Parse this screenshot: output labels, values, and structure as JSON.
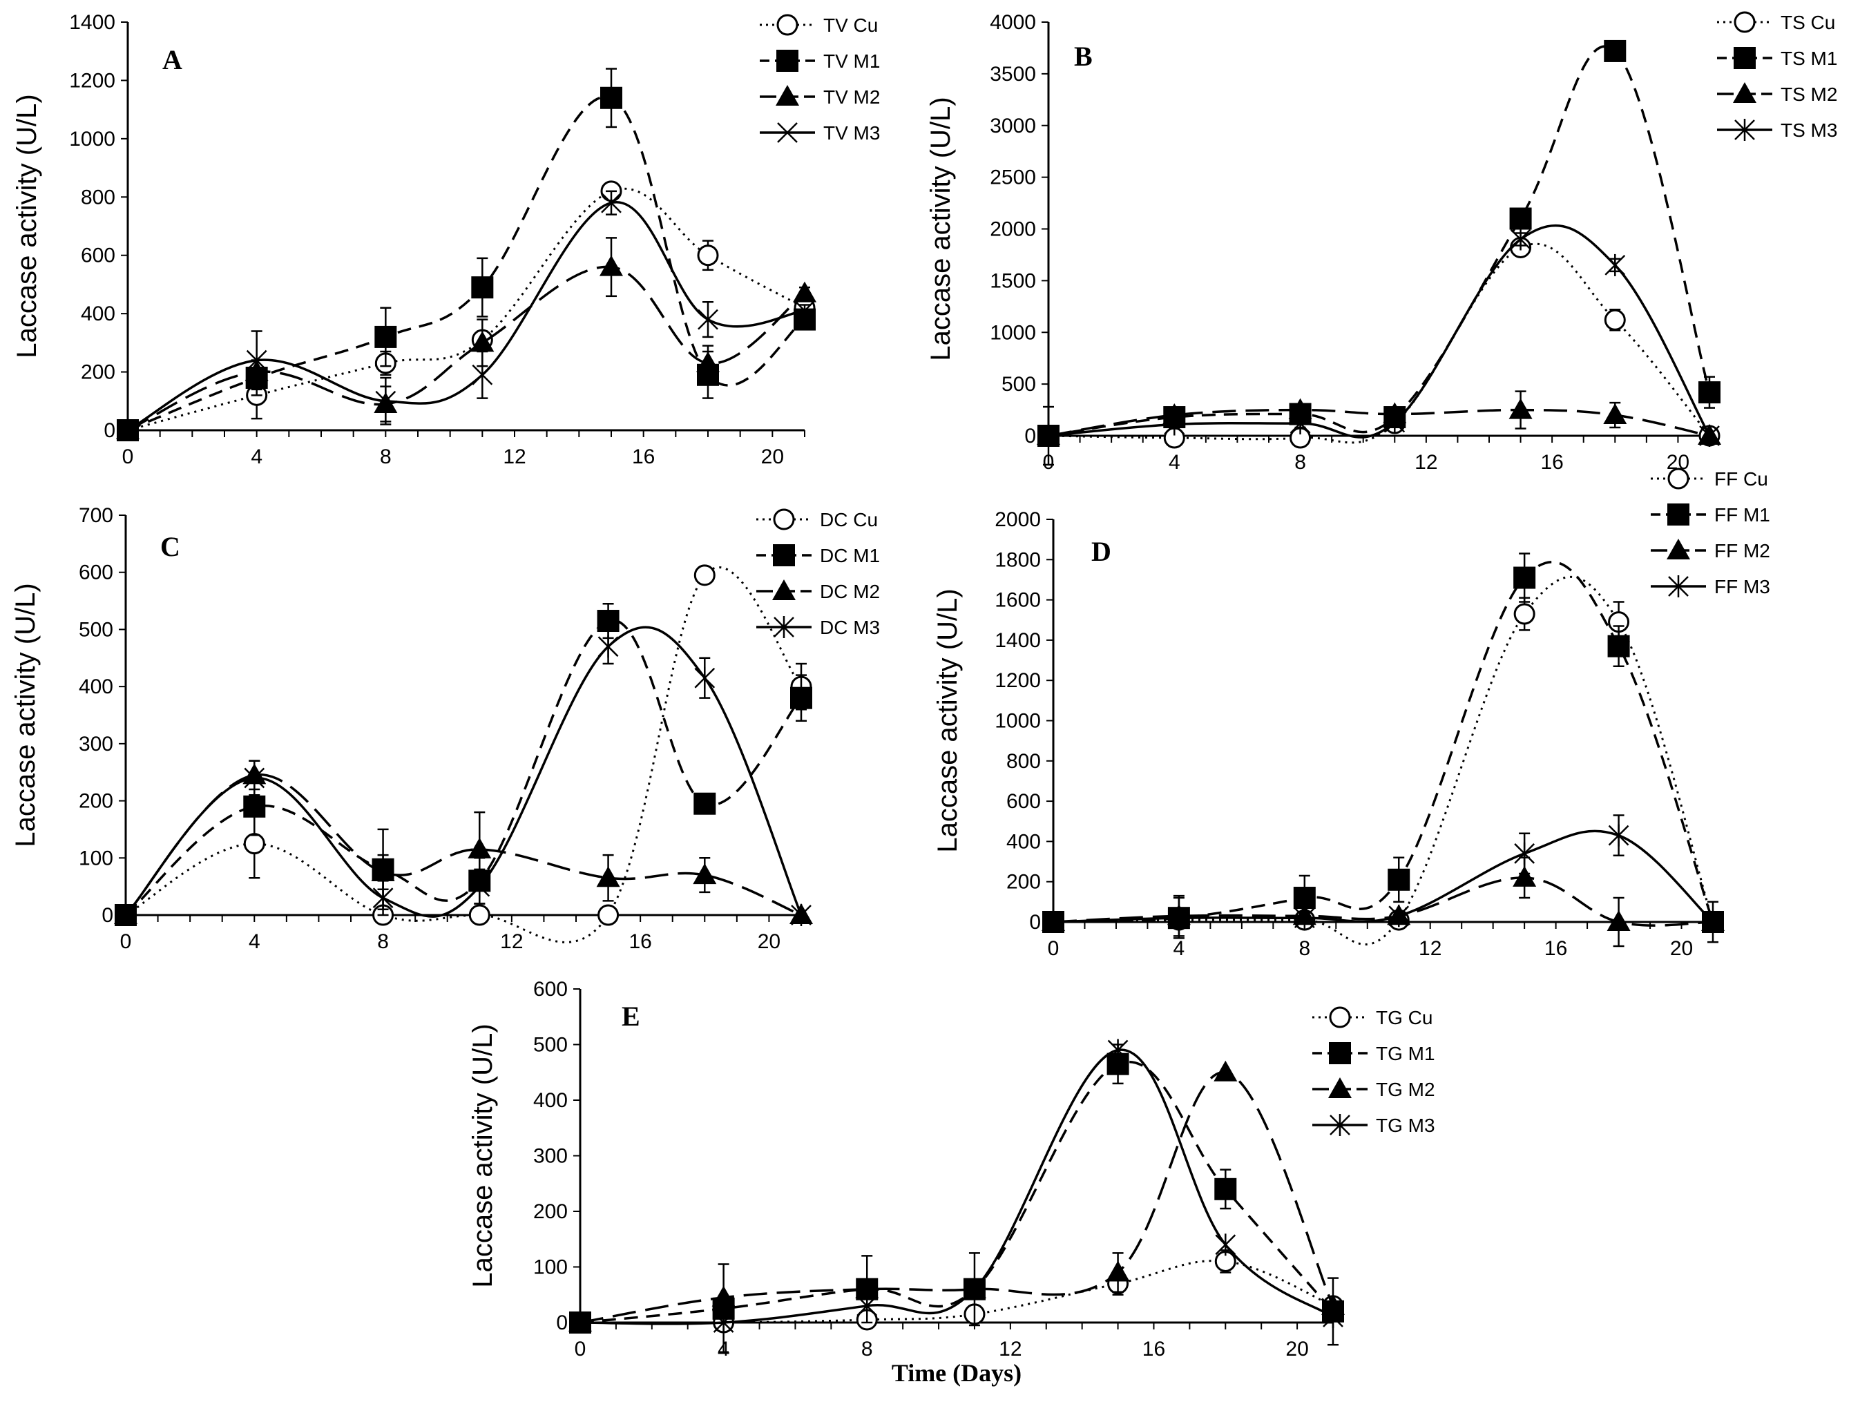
{
  "chart_data": [
    {
      "type": "line",
      "panel": "A",
      "ylabel": "Laccase activity (U/L)",
      "xlabel": "",
      "xlim": [
        0,
        21
      ],
      "x_ticks": [
        0,
        4,
        8,
        12,
        16,
        20
      ],
      "ylim": [
        0,
        1400
      ],
      "y_ticks": [
        0,
        200,
        400,
        600,
        800,
        1000,
        1200,
        1400
      ],
      "x": [
        0,
        4,
        8,
        11,
        15,
        18,
        21
      ],
      "legend_position": "top-right",
      "series": [
        {
          "name": "TV Cu",
          "style": "dotted",
          "marker": "circle",
          "values": [
            0,
            120,
            230,
            310,
            820,
            600,
            420
          ],
          "errors": [
            0,
            80,
            40,
            30,
            20,
            50,
            20
          ]
        },
        {
          "name": "TV M1",
          "style": "dashed",
          "marker": "square",
          "values": [
            0,
            180,
            320,
            490,
            1140,
            190,
            380
          ],
          "errors": [
            0,
            60,
            100,
            100,
            100,
            80,
            20
          ]
        },
        {
          "name": "TV M2",
          "style": "longdash",
          "marker": "triangle",
          "values": [
            0,
            200,
            90,
            300,
            560,
            230,
            470
          ],
          "errors": [
            0,
            40,
            60,
            80,
            100,
            60,
            20
          ]
        },
        {
          "name": "TV M3",
          "style": "solid",
          "marker": "x",
          "values": [
            0,
            240,
            100,
            190,
            780,
            380,
            410
          ],
          "errors": [
            0,
            100,
            80,
            80,
            40,
            60,
            20
          ]
        }
      ]
    },
    {
      "type": "line",
      "panel": "B",
      "ylabel": "Laccase activity (U/L)",
      "xlabel": "",
      "xlim": [
        0,
        21
      ],
      "x_ticks": [
        0,
        4,
        8,
        12,
        16,
        20
      ],
      "ylim": [
        0,
        4000
      ],
      "y_ticks": [
        0,
        500,
        1000,
        1500,
        2000,
        2500,
        3000,
        3500,
        4000
      ],
      "x": [
        0,
        4,
        8,
        11,
        15,
        18,
        21
      ],
      "legend_position": "top-right",
      "series": [
        {
          "name": "TS Cu",
          "style": "dotted",
          "marker": "circle",
          "values": [
            0,
            -20,
            -20,
            120,
            1820,
            1120,
            0
          ],
          "errors": [
            0,
            0,
            0,
            40,
            60,
            100,
            0
          ]
        },
        {
          "name": "TS M1",
          "style": "dashed",
          "marker": "square",
          "values": [
            0,
            180,
            210,
            180,
            2100,
            3720,
            420
          ],
          "errors": [
            0,
            60,
            60,
            60,
            80,
            60,
            150
          ]
        },
        {
          "name": "TS M2",
          "style": "longdash",
          "marker": "triangle",
          "values": [
            0,
            200,
            250,
            210,
            250,
            200,
            0
          ],
          "errors": [
            280,
            40,
            40,
            40,
            180,
            120,
            0
          ]
        },
        {
          "name": "TS M3",
          "style": "solid",
          "marker": "asterisk",
          "values": [
            0,
            110,
            120,
            130,
            1900,
            1650,
            0
          ],
          "errors": [
            0,
            40,
            40,
            40,
            60,
            60,
            0
          ]
        }
      ]
    },
    {
      "type": "line",
      "panel": "C",
      "ylabel": "Laccase activity (U/L)",
      "xlabel": "",
      "xlim": [
        0,
        21
      ],
      "x_ticks": [
        0,
        4,
        8,
        12,
        16,
        20
      ],
      "ylim": [
        0,
        700
      ],
      "y_ticks": [
        0,
        100,
        200,
        300,
        400,
        500,
        600,
        700
      ],
      "x": [
        0,
        4,
        8,
        11,
        15,
        18,
        21
      ],
      "legend_position": "top-right",
      "series": [
        {
          "name": "DC Cu",
          "style": "dotted",
          "marker": "circle",
          "values": [
            0,
            125,
            0,
            0,
            0,
            595,
            400
          ],
          "errors": [
            0,
            60,
            0,
            0,
            0,
            15,
            40
          ]
        },
        {
          "name": "DC M1",
          "style": "dashed",
          "marker": "square",
          "values": [
            0,
            190,
            80,
            60,
            515,
            195,
            380
          ],
          "errors": [
            0,
            50,
            70,
            40,
            30,
            15,
            40
          ]
        },
        {
          "name": "DC M2",
          "style": "longdash",
          "marker": "triangle",
          "values": [
            0,
            245,
            75,
            115,
            65,
            70,
            0
          ],
          "errors": [
            0,
            25,
            30,
            65,
            40,
            30,
            0
          ]
        },
        {
          "name": "DC M3",
          "style": "solid",
          "marker": "asterisk",
          "values": [
            0,
            240,
            30,
            50,
            470,
            415,
            0
          ],
          "errors": [
            0,
            30,
            30,
            30,
            30,
            35,
            0
          ]
        }
      ]
    },
    {
      "type": "line",
      "panel": "D",
      "ylabel": "Laccase activity (U/L)",
      "xlabel": "",
      "xlim": [
        0,
        21
      ],
      "x_ticks": [
        0,
        4,
        8,
        12,
        16,
        20
      ],
      "ylim": [
        0,
        2000
      ],
      "y_ticks": [
        0,
        200,
        400,
        600,
        800,
        1000,
        1200,
        1400,
        1600,
        1800,
        2000
      ],
      "x": [
        0,
        4,
        8,
        11,
        15,
        18,
        21
      ],
      "legend_position": "top-right",
      "series": [
        {
          "name": "FF Cu",
          "style": "dotted",
          "marker": "circle",
          "values": [
            0,
            10,
            10,
            10,
            1530,
            1490,
            0
          ],
          "errors": [
            0,
            0,
            0,
            0,
            80,
            100,
            0
          ]
        },
        {
          "name": "FF M1",
          "style": "dashed",
          "marker": "square",
          "values": [
            0,
            20,
            120,
            210,
            1710,
            1370,
            0
          ],
          "errors": [
            0,
            100,
            110,
            110,
            120,
            100,
            100
          ]
        },
        {
          "name": "FF M2",
          "style": "longdash",
          "marker": "triangle",
          "values": [
            0,
            30,
            30,
            30,
            220,
            0,
            0
          ],
          "errors": [
            0,
            100,
            0,
            0,
            100,
            120,
            0
          ]
        },
        {
          "name": "FF M3",
          "style": "solid",
          "marker": "asterisk",
          "values": [
            0,
            20,
            20,
            30,
            340,
            430,
            0
          ],
          "errors": [
            0,
            0,
            0,
            0,
            100,
            100,
            0
          ]
        }
      ]
    },
    {
      "type": "line",
      "panel": "E",
      "ylabel": "Laccase activity (U/L)",
      "xlabel": "Time (Days)",
      "xlim": [
        0,
        21
      ],
      "x_ticks": [
        0,
        4,
        8,
        12,
        16,
        20
      ],
      "ylim": [
        0,
        600
      ],
      "y_ticks": [
        0,
        100,
        200,
        300,
        400,
        500,
        600
      ],
      "x": [
        0,
        4,
        8,
        11,
        15,
        18,
        21
      ],
      "legend_position": "top-right",
      "series": [
        {
          "name": "TG Cu",
          "style": "dotted",
          "marker": "circle",
          "values": [
            0,
            0,
            5,
            15,
            70,
            110,
            30
          ],
          "errors": [
            0,
            0,
            0,
            0,
            20,
            20,
            0
          ]
        },
        {
          "name": "TG M1",
          "style": "dashed",
          "marker": "square",
          "values": [
            0,
            25,
            60,
            60,
            465,
            240,
            20
          ],
          "errors": [
            0,
            80,
            60,
            65,
            35,
            35,
            60
          ]
        },
        {
          "name": "TG M2",
          "style": "longdash",
          "marker": "triangle",
          "values": [
            0,
            45,
            60,
            60,
            90,
            450,
            30
          ],
          "errors": [
            0,
            0,
            0,
            0,
            35,
            0,
            0
          ]
        },
        {
          "name": "TG M3",
          "style": "solid",
          "marker": "asterisk",
          "values": [
            0,
            0,
            30,
            60,
            490,
            140,
            10
          ],
          "errors": [
            0,
            0,
            0,
            0,
            0,
            0,
            0
          ]
        }
      ]
    }
  ]
}
